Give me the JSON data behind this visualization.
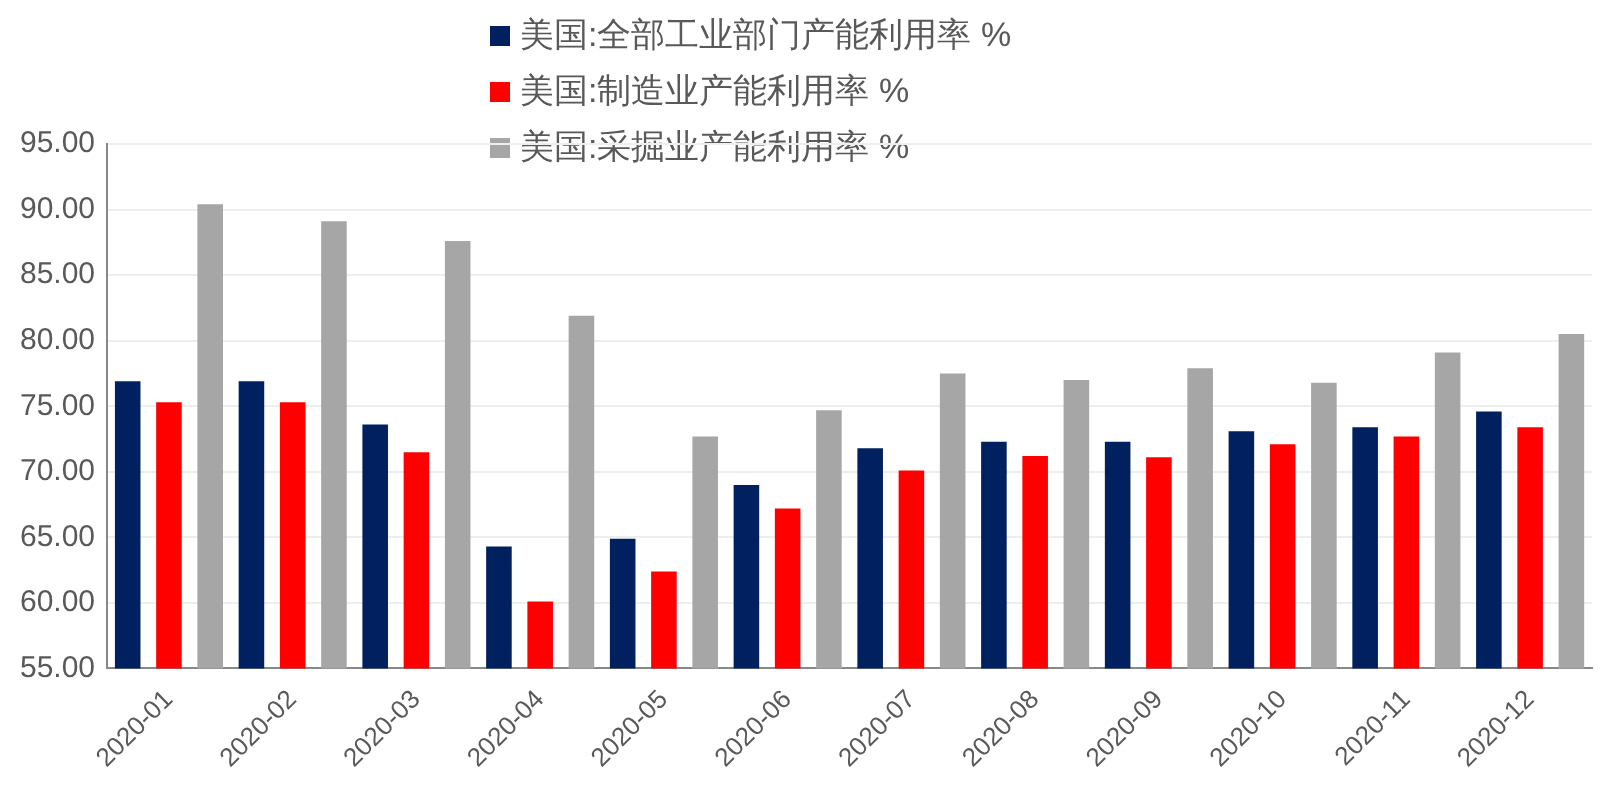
{
  "chart_data": {
    "type": "bar",
    "categories": [
      "2020-01",
      "2020-02",
      "2020-03",
      "2020-04",
      "2020-05",
      "2020-06",
      "2020-07",
      "2020-08",
      "2020-09",
      "2020-10",
      "2020-11",
      "2020-12"
    ],
    "series": [
      {
        "name": "美国:全部工业部门产能利用率 %",
        "color": "#002060",
        "values": [
          76.9,
          76.9,
          73.6,
          64.3,
          64.9,
          69.0,
          71.8,
          72.3,
          72.3,
          73.1,
          73.4,
          74.6
        ]
      },
      {
        "name": "美国:制造业产能利用率 %",
        "color": "#ff0000",
        "values": [
          75.3,
          75.3,
          71.5,
          60.1,
          62.4,
          67.2,
          70.1,
          71.2,
          71.1,
          72.1,
          72.7,
          73.4
        ]
      },
      {
        "name": "美国:采掘业产能利用率 %",
        "color": "#a6a6a6",
        "values": [
          90.4,
          89.1,
          87.6,
          81.9,
          72.7,
          74.7,
          77.5,
          77.0,
          77.9,
          76.8,
          79.1,
          80.5
        ]
      }
    ],
    "ylim": [
      55,
      95
    ],
    "yticks": [
      {
        "value": 55,
        "label": "55.00"
      },
      {
        "value": 60,
        "label": "60.00"
      },
      {
        "value": 65,
        "label": "65.00"
      },
      {
        "value": 70,
        "label": "70.00"
      },
      {
        "value": 75,
        "label": "75.00"
      },
      {
        "value": 80,
        "label": "80.00"
      },
      {
        "value": 85,
        "label": "85.00"
      },
      {
        "value": 90,
        "label": "90.00"
      },
      {
        "value": 95,
        "label": "95.00"
      }
    ],
    "grid": "y",
    "legend": "top"
  }
}
